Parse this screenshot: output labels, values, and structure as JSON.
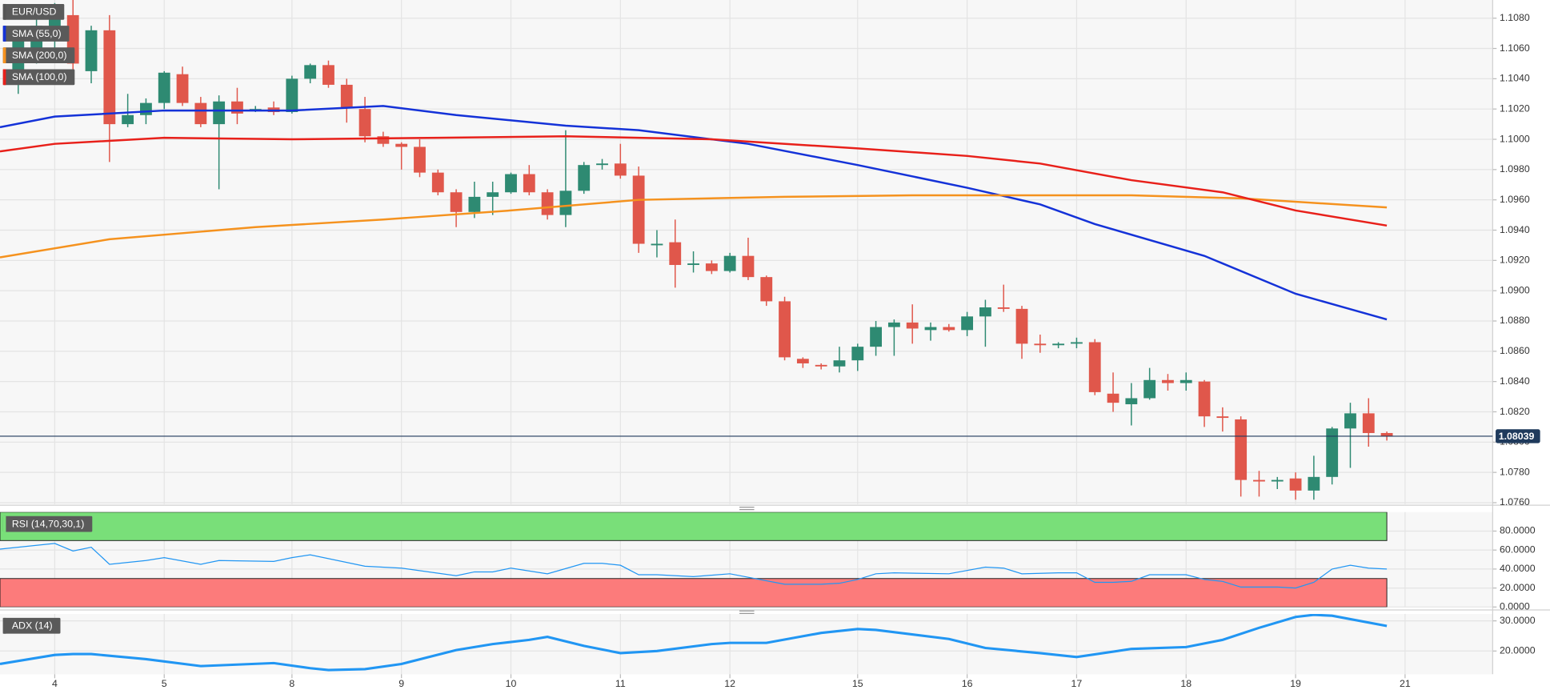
{
  "chart_data": [
    {
      "type": "candlestick",
      "title": "EUR/USD",
      "x": [
        0,
        1,
        2,
        3,
        4,
        5,
        6,
        7,
        8,
        9,
        10,
        11,
        12,
        13,
        14,
        15,
        16,
        17,
        18,
        19,
        20,
        21,
        22,
        23,
        24,
        25,
        26,
        27,
        28,
        29,
        30,
        31,
        32,
        33,
        34,
        35,
        36,
        37,
        38,
        39,
        40,
        41,
        42,
        43,
        44,
        45,
        46,
        47,
        48,
        49,
        50,
        51,
        52,
        53,
        54,
        55,
        56,
        57,
        58,
        59,
        60,
        61,
        62,
        63,
        64,
        65,
        66,
        67,
        68,
        69,
        70,
        71,
        72,
        73,
        74,
        75
      ],
      "open": [
        1.1045,
        1.1055,
        1.1068,
        1.1082,
        1.1045,
        1.1072,
        1.101,
        1.1016,
        1.1024,
        1.1043,
        1.1024,
        1.101,
        1.1025,
        1.1019,
        1.1021,
        1.1018,
        1.104,
        1.1049,
        1.1036,
        1.102,
        1.1002,
        1.0997,
        1.0995,
        1.0978,
        1.0965,
        1.0952,
        1.0962,
        1.0965,
        1.0977,
        1.0965,
        1.095,
        1.0966,
        1.0983,
        1.0984,
        1.0976,
        1.093,
        1.0932,
        1.0917,
        1.0918,
        1.0913,
        1.0923,
        1.0909,
        1.0893,
        1.0855,
        1.0851,
        1.085,
        1.0854,
        1.0863,
        1.0876,
        1.0879,
        1.0874,
        1.0876,
        1.0874,
        1.0883,
        1.0889,
        1.0888,
        1.0865,
        1.0864,
        1.0865,
        1.0866,
        1.0832,
        1.0825,
        1.0829,
        1.0841,
        1.0839,
        1.084,
        1.0817,
        1.0815,
        1.0775,
        1.0774,
        1.0776,
        1.0768,
        1.0777,
        1.0809,
        1.0819,
        1.0806
      ],
      "high": [
        1.107,
        1.1082,
        1.109,
        1.1092,
        1.1075,
        1.1082,
        1.103,
        1.1027,
        1.1045,
        1.1048,
        1.1028,
        1.1029,
        1.1034,
        1.1022,
        1.1025,
        1.1042,
        1.105,
        1.1052,
        1.104,
        1.1028,
        1.1005,
        1.0998,
        1.1,
        1.098,
        1.0967,
        1.0972,
        1.0972,
        1.0978,
        1.0983,
        1.0967,
        1.1006,
        1.0985,
        1.0987,
        1.0997,
        1.0982,
        1.094,
        1.0947,
        1.0926,
        1.092,
        1.0925,
        1.0935,
        1.091,
        1.0896,
        1.0856,
        1.0852,
        1.0863,
        1.0865,
        1.088,
        1.0881,
        1.0891,
        1.0879,
        1.0878,
        1.0886,
        1.0894,
        1.0904,
        1.089,
        1.0871,
        1.0866,
        1.0869,
        1.0868,
        1.0846,
        1.0839,
        1.0849,
        1.0845,
        1.0846,
        1.0841,
        1.0823,
        1.0817,
        1.0781,
        1.0777,
        1.078,
        1.0791,
        1.081,
        1.0826,
        1.0829,
        1.0807
      ],
      "low": [
        1.103,
        1.105,
        1.106,
        1.1045,
        1.1037,
        1.0985,
        1.1008,
        1.101,
        1.102,
        1.1022,
        1.1008,
        1.0967,
        1.101,
        1.1018,
        1.1016,
        1.1017,
        1.1037,
        1.1034,
        1.1011,
        1.0998,
        1.0995,
        1.098,
        1.0975,
        1.0963,
        1.0942,
        1.0948,
        1.095,
        1.0964,
        1.0963,
        1.0947,
        1.0942,
        1.0964,
        1.098,
        1.0974,
        1.0925,
        1.0922,
        1.0902,
        1.0912,
        1.0911,
        1.0912,
        1.0907,
        1.089,
        1.0854,
        1.0849,
        1.0848,
        1.0846,
        1.0847,
        1.0857,
        1.0857,
        1.0865,
        1.0867,
        1.0873,
        1.087,
        1.0863,
        1.0886,
        1.0855,
        1.0859,
        1.0862,
        1.0862,
        1.0831,
        1.082,
        1.0811,
        1.0828,
        1.0834,
        1.0834,
        1.081,
        1.0807,
        1.0764,
        1.0764,
        1.0769,
        1.0762,
        1.0762,
        1.0772,
        1.0783,
        1.0797,
        1.0801
      ],
      "close": [
        1.1065,
        1.1075,
        1.1082,
        1.105,
        1.1072,
        1.101,
        1.1016,
        1.1024,
        1.1044,
        1.1024,
        1.101,
        1.1025,
        1.1017,
        1.102,
        1.1018,
        1.104,
        1.1049,
        1.1036,
        1.1021,
        1.1002,
        1.0997,
        1.0995,
        1.0978,
        1.0965,
        1.0952,
        1.0962,
        1.0965,
        1.0977,
        1.0965,
        1.095,
        1.0966,
        1.0983,
        1.0984,
        1.0976,
        1.0931,
        1.0931,
        1.0917,
        1.0918,
        1.0913,
        1.0923,
        1.0909,
        1.0893,
        1.0856,
        1.0852,
        1.085,
        1.0854,
        1.0863,
        1.0876,
        1.0879,
        1.0875,
        1.0876,
        1.0874,
        1.0883,
        1.0889,
        1.0888,
        1.0865,
        1.0864,
        1.0865,
        1.0866,
        1.0833,
        1.0826,
        1.0829,
        1.0841,
        1.0839,
        1.0841,
        1.0817,
        1.0816,
        1.0775,
        1.0774,
        1.0775,
        1.0768,
        1.0777,
        1.0809,
        1.0819,
        1.0806,
        1.0804
      ],
      "up_color": "#2e8a72",
      "down_color": "#e0574b",
      "series": [
        {
          "name": "SMA (55,0)",
          "color": "#1432d8",
          "x": [
            -1,
            2,
            8,
            15,
            20,
            24,
            30,
            34,
            40,
            46,
            52,
            56,
            59,
            65,
            70,
            75
          ],
          "values": [
            1.1008,
            1.1015,
            1.1019,
            1.1019,
            1.1022,
            1.1016,
            1.1009,
            1.1006,
            1.0997,
            1.0983,
            1.0968,
            1.0957,
            1.0944,
            1.0923,
            1.0898,
            1.0881
          ]
        },
        {
          "name": "SMA (200,0)",
          "color": "#f5921e",
          "x": [
            -1,
            5,
            13,
            20,
            27,
            34,
            42,
            49,
            61,
            67,
            75
          ],
          "values": [
            1.0922,
            1.0934,
            1.0942,
            1.0947,
            1.0953,
            1.096,
            1.0962,
            1.0963,
            1.0963,
            1.0961,
            1.0955
          ]
        },
        {
          "name": "SMA (100,0)",
          "color": "#e8201a",
          "x": [
            -1,
            2,
            8,
            15,
            23,
            30,
            38,
            46,
            52,
            56,
            61,
            66,
            70,
            75
          ],
          "values": [
            1.0992,
            1.0997,
            1.1001,
            1.1,
            1.1001,
            1.1002,
            1.1,
            1.0994,
            1.0989,
            1.0984,
            1.0973,
            1.0965,
            1.0953,
            1.0943
          ]
        }
      ],
      "last_price": 1.08039,
      "last_price_color": "#1f3a5c",
      "xlim": [
        -1,
        80.8
      ],
      "ylim": [
        1.0759,
        1.1092
      ],
      "yticks": [
        {
          "value": 1.076,
          "label": "1.0760"
        },
        {
          "value": 1.078,
          "label": "1.0780"
        },
        {
          "value": 1.08,
          "label": "1.0800"
        },
        {
          "value": 1.082,
          "label": "1.0820"
        },
        {
          "value": 1.084,
          "label": "1.0840"
        },
        {
          "value": 1.086,
          "label": "1.0860"
        },
        {
          "value": 1.088,
          "label": "1.0880"
        },
        {
          "value": 1.09,
          "label": "1.0900"
        },
        {
          "value": 1.092,
          "label": "1.0920"
        },
        {
          "value": 1.094,
          "label": "1.0940"
        },
        {
          "value": 1.096,
          "label": "1.0960"
        },
        {
          "value": 1.098,
          "label": "1.0980"
        },
        {
          "value": 1.1,
          "label": "1.1000"
        },
        {
          "value": 1.102,
          "label": "1.1020"
        },
        {
          "value": 1.104,
          "label": "1.1040"
        },
        {
          "value": 1.106,
          "label": "1.1060"
        },
        {
          "value": 1.108,
          "label": "1.1080"
        }
      ],
      "grid": true
    },
    {
      "type": "line",
      "title": "RSI (14,70,30,1)",
      "overbought": 70,
      "oversold": 30,
      "overbought_color": "#79df79",
      "oversold_color": "#fc7b7b",
      "series": [
        {
          "color": "#2196f3",
          "x": [
            -1,
            2,
            3,
            4,
            5,
            7,
            8,
            10,
            11,
            14,
            15,
            16,
            19,
            21,
            24,
            25,
            26,
            27,
            29,
            31,
            32,
            33,
            34,
            35,
            37,
            39,
            42,
            44,
            45,
            46,
            47,
            48,
            51,
            53,
            54,
            55,
            57,
            58,
            59,
            60,
            61,
            62,
            64,
            65,
            66,
            67,
            69,
            70,
            71,
            72,
            73,
            74,
            75
          ],
          "values": [
            61,
            67,
            59,
            63,
            45,
            49,
            52,
            45,
            49,
            48,
            52,
            55,
            43,
            41,
            33,
            37,
            37,
            41,
            35,
            46,
            46,
            44,
            34,
            34,
            32,
            35,
            24,
            24,
            25,
            29,
            35,
            36,
            35,
            42,
            41,
            35,
            36,
            36,
            26,
            26,
            27,
            34,
            34,
            29,
            27,
            21,
            21,
            20,
            26,
            40,
            44,
            41,
            40
          ]
        }
      ],
      "xlim": [
        -1,
        80.8
      ],
      "ylim": [
        0,
        100
      ],
      "yticks": [
        {
          "value": 0,
          "label": "0.0000"
        },
        {
          "value": 20,
          "label": "20.0000"
        },
        {
          "value": 40,
          "label": "40.0000"
        },
        {
          "value": 60,
          "label": "60.0000"
        },
        {
          "value": 80,
          "label": "80.0000"
        }
      ],
      "grid": true
    },
    {
      "type": "line",
      "title": "ADX (14)",
      "series": [
        {
          "color": "#2196f3",
          "x": [
            -1,
            2,
            3,
            4,
            7,
            10,
            14,
            16,
            17,
            19,
            21,
            24,
            26,
            28,
            29,
            31,
            33,
            35,
            38,
            39,
            41,
            44,
            46,
            47,
            51,
            53,
            56,
            58,
            61,
            64,
            66,
            68,
            70,
            71,
            72,
            75
          ],
          "values": [
            15.7,
            18.7,
            19,
            19,
            17.3,
            15,
            16,
            14.3,
            13.7,
            14,
            15.7,
            20.3,
            22.3,
            23.7,
            24.7,
            21.7,
            19.3,
            20,
            22.3,
            22.7,
            22.7,
            26,
            27.3,
            27,
            24,
            21,
            19.3,
            18,
            20.7,
            21.3,
            23.7,
            27.7,
            31.3,
            32,
            31.7,
            28.3
          ]
        }
      ],
      "xlim": [
        -1,
        80.8
      ],
      "ylim": [
        12.3,
        32.3
      ],
      "yticks": [
        {
          "value": 20,
          "label": "20.0000"
        },
        {
          "value": 30,
          "label": "30.0000"
        }
      ],
      "xticks": [
        {
          "value": 2,
          "label": "4"
        },
        {
          "value": 8,
          "label": "5"
        },
        {
          "value": 15,
          "label": "8"
        },
        {
          "value": 21,
          "label": "9"
        },
        {
          "value": 27,
          "label": "10"
        },
        {
          "value": 33,
          "label": "11"
        },
        {
          "value": 39,
          "label": "12"
        },
        {
          "value": 46,
          "label": "15"
        },
        {
          "value": 52,
          "label": "16"
        },
        {
          "value": 58,
          "label": "17"
        },
        {
          "value": 64,
          "label": "18"
        },
        {
          "value": 70,
          "label": "19"
        },
        {
          "value": 76,
          "label": "21"
        }
      ],
      "grid": true
    }
  ]
}
